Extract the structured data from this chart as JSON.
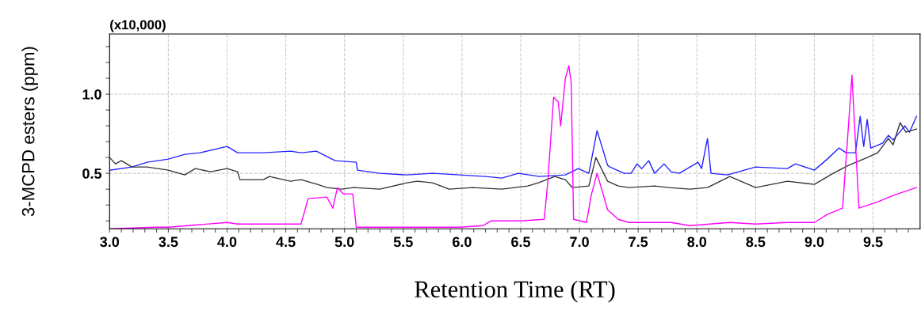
{
  "chart_data": {
    "type": "line",
    "xlabel": "Retention Time (RT)",
    "ylabel": "3-MCPD esters (ppm)",
    "annotations": [
      "(x10,000)"
    ],
    "xlim": [
      3.0,
      9.9
    ],
    "ylim": [
      0.15,
      1.38
    ],
    "grid": true,
    "marker": "none",
    "line_style": "solid",
    "xticks": [
      {
        "value": 3.0,
        "label": "3.0"
      },
      {
        "value": 3.1,
        "label": null
      },
      {
        "value": 3.2,
        "label": null
      },
      {
        "value": 3.3,
        "label": null
      },
      {
        "value": 3.4,
        "label": null
      },
      {
        "value": 3.5,
        "label": "3.5"
      },
      {
        "value": 3.6,
        "label": null
      },
      {
        "value": 3.7,
        "label": null
      },
      {
        "value": 3.8,
        "label": null
      },
      {
        "value": 3.9,
        "label": null
      },
      {
        "value": 4.0,
        "label": "4.0"
      },
      {
        "value": 4.1,
        "label": null
      },
      {
        "value": 4.2,
        "label": null
      },
      {
        "value": 4.3,
        "label": null
      },
      {
        "value": 4.4,
        "label": null
      },
      {
        "value": 4.5,
        "label": "4.5"
      },
      {
        "value": 4.6,
        "label": null
      },
      {
        "value": 4.7,
        "label": null
      },
      {
        "value": 4.8,
        "label": null
      },
      {
        "value": 4.9,
        "label": null
      },
      {
        "value": 5.0,
        "label": "5.0"
      },
      {
        "value": 5.1,
        "label": null
      },
      {
        "value": 5.2,
        "label": null
      },
      {
        "value": 5.3,
        "label": null
      },
      {
        "value": 5.4,
        "label": null
      },
      {
        "value": 5.5,
        "label": "5.5"
      },
      {
        "value": 5.6,
        "label": null
      },
      {
        "value": 5.7,
        "label": null
      },
      {
        "value": 5.8,
        "label": null
      },
      {
        "value": 5.9,
        "label": null
      },
      {
        "value": 6.0,
        "label": "6.0"
      },
      {
        "value": 6.1,
        "label": null
      },
      {
        "value": 6.2,
        "label": null
      },
      {
        "value": 6.3,
        "label": null
      },
      {
        "value": 6.4,
        "label": null
      },
      {
        "value": 6.5,
        "label": "6.5"
      },
      {
        "value": 6.6,
        "label": null
      },
      {
        "value": 6.7,
        "label": null
      },
      {
        "value": 6.8,
        "label": null
      },
      {
        "value": 6.9,
        "label": null
      },
      {
        "value": 7.0,
        "label": "7.0"
      },
      {
        "value": 7.1,
        "label": null
      },
      {
        "value": 7.2,
        "label": null
      },
      {
        "value": 7.3,
        "label": null
      },
      {
        "value": 7.4,
        "label": null
      },
      {
        "value": 7.5,
        "label": "7.5"
      },
      {
        "value": 7.6,
        "label": null
      },
      {
        "value": 7.7,
        "label": null
      },
      {
        "value": 7.8,
        "label": null
      },
      {
        "value": 7.9,
        "label": null
      },
      {
        "value": 8.0,
        "label": "8.0"
      },
      {
        "value": 8.1,
        "label": null
      },
      {
        "value": 8.2,
        "label": null
      },
      {
        "value": 8.3,
        "label": null
      },
      {
        "value": 8.4,
        "label": null
      },
      {
        "value": 8.5,
        "label": "8.5"
      },
      {
        "value": 8.6,
        "label": null
      },
      {
        "value": 8.7,
        "label": null
      },
      {
        "value": 8.8,
        "label": null
      },
      {
        "value": 8.9,
        "label": null
      },
      {
        "value": 9.0,
        "label": "9.0"
      },
      {
        "value": 9.1,
        "label": null
      },
      {
        "value": 9.2,
        "label": null
      },
      {
        "value": 9.3,
        "label": null
      },
      {
        "value": 9.4,
        "label": null
      },
      {
        "value": 9.5,
        "label": "9.5"
      },
      {
        "value": 9.6,
        "label": null
      },
      {
        "value": 9.7,
        "label": null
      },
      {
        "value": 9.8,
        "label": null
      }
    ],
    "yticks": [
      {
        "value": 0.2,
        "label": null
      },
      {
        "value": 0.3,
        "label": null
      },
      {
        "value": 0.4,
        "label": null
      },
      {
        "value": 0.5,
        "label": "0.5"
      },
      {
        "value": 0.6,
        "label": null
      },
      {
        "value": 0.7,
        "label": null
      },
      {
        "value": 0.8,
        "label": null
      },
      {
        "value": 0.9,
        "label": null
      },
      {
        "value": 1.0,
        "label": "1.0"
      },
      {
        "value": 1.1,
        "label": null
      },
      {
        "value": 1.2,
        "label": null
      },
      {
        "value": 1.3,
        "label": null
      }
    ],
    "series": [
      {
        "color": "#2323ff",
        "x": [
          3.0,
          3.19,
          3.32,
          3.5,
          3.64,
          3.77,
          4.0,
          4.09,
          4.31,
          4.54,
          4.63,
          4.76,
          4.92,
          5.1,
          5.11,
          5.3,
          5.53,
          5.75,
          5.98,
          6.2,
          6.34,
          6.48,
          6.66,
          6.88,
          6.99,
          7.08,
          7.15,
          7.24,
          7.26,
          7.38,
          7.44,
          7.49,
          7.53,
          7.59,
          7.64,
          7.72,
          7.78,
          7.85,
          8.01,
          8.04,
          8.09,
          8.12,
          8.26,
          8.5,
          8.77,
          8.84,
          9.0,
          9.11,
          9.21,
          9.27,
          9.35,
          9.39,
          9.42,
          9.45,
          9.48,
          9.58,
          9.63,
          9.67,
          9.77,
          9.81,
          9.87
        ],
        "values": [
          0.52,
          0.54,
          0.57,
          0.59,
          0.62,
          0.63,
          0.67,
          0.63,
          0.63,
          0.64,
          0.63,
          0.64,
          0.58,
          0.57,
          0.52,
          0.5,
          0.49,
          0.5,
          0.49,
          0.48,
          0.47,
          0.5,
          0.48,
          0.49,
          0.53,
          0.5,
          0.77,
          0.55,
          0.54,
          0.5,
          0.5,
          0.56,
          0.53,
          0.58,
          0.5,
          0.56,
          0.51,
          0.5,
          0.57,
          0.53,
          0.72,
          0.5,
          0.49,
          0.54,
          0.53,
          0.56,
          0.52,
          0.59,
          0.66,
          0.63,
          0.63,
          0.86,
          0.67,
          0.84,
          0.66,
          0.69,
          0.74,
          0.71,
          0.8,
          0.76,
          0.86
        ]
      },
      {
        "color": "#333333",
        "x": [
          3.0,
          3.05,
          3.1,
          3.19,
          3.32,
          3.5,
          3.64,
          3.73,
          3.86,
          4.0,
          4.09,
          4.11,
          4.31,
          4.36,
          4.54,
          4.63,
          4.77,
          4.85,
          4.97,
          5.08,
          5.3,
          5.53,
          5.62,
          5.75,
          5.89,
          6.09,
          6.34,
          6.56,
          6.65,
          6.79,
          6.88,
          6.94,
          7.08,
          7.14,
          7.24,
          7.33,
          7.42,
          7.64,
          7.76,
          7.94,
          8.09,
          8.28,
          8.5,
          8.77,
          9.0,
          9.16,
          9.29,
          9.45,
          9.54,
          9.63,
          9.67,
          9.73,
          9.78,
          9.87
        ],
        "values": [
          0.6,
          0.56,
          0.58,
          0.54,
          0.54,
          0.52,
          0.49,
          0.53,
          0.51,
          0.53,
          0.51,
          0.46,
          0.46,
          0.48,
          0.45,
          0.46,
          0.43,
          0.41,
          0.4,
          0.41,
          0.4,
          0.44,
          0.45,
          0.44,
          0.4,
          0.41,
          0.4,
          0.42,
          0.44,
          0.48,
          0.46,
          0.41,
          0.42,
          0.6,
          0.45,
          0.42,
          0.41,
          0.42,
          0.41,
          0.4,
          0.41,
          0.48,
          0.41,
          0.45,
          0.43,
          0.5,
          0.55,
          0.6,
          0.63,
          0.72,
          0.68,
          0.82,
          0.76,
          0.78
        ]
      },
      {
        "color": "#ff00ff",
        "x": [
          3.0,
          3.39,
          3.5,
          4.0,
          4.09,
          4.63,
          4.69,
          4.85,
          4.9,
          4.94,
          4.99,
          5.07,
          5.1,
          5.46,
          5.64,
          5.98,
          6.18,
          6.25,
          6.5,
          6.7,
          6.73,
          6.78,
          6.82,
          6.84,
          6.88,
          6.91,
          6.93,
          6.95,
          7.06,
          7.1,
          7.15,
          7.24,
          7.33,
          7.42,
          7.78,
          7.94,
          8.28,
          8.5,
          8.77,
          9.0,
          9.11,
          9.24,
          9.28,
          9.32,
          9.35,
          9.38,
          9.54,
          9.67,
          9.87
        ],
        "values": [
          0.15,
          0.16,
          0.16,
          0.19,
          0.18,
          0.18,
          0.34,
          0.35,
          0.28,
          0.41,
          0.37,
          0.37,
          0.16,
          0.16,
          0.16,
          0.16,
          0.17,
          0.2,
          0.2,
          0.21,
          0.44,
          0.98,
          0.95,
          0.8,
          1.1,
          1.18,
          1.07,
          0.21,
          0.19,
          0.36,
          0.5,
          0.27,
          0.21,
          0.19,
          0.19,
          0.17,
          0.19,
          0.18,
          0.19,
          0.19,
          0.24,
          0.28,
          0.69,
          1.12,
          0.69,
          0.28,
          0.32,
          0.36,
          0.41
        ]
      }
    ]
  }
}
